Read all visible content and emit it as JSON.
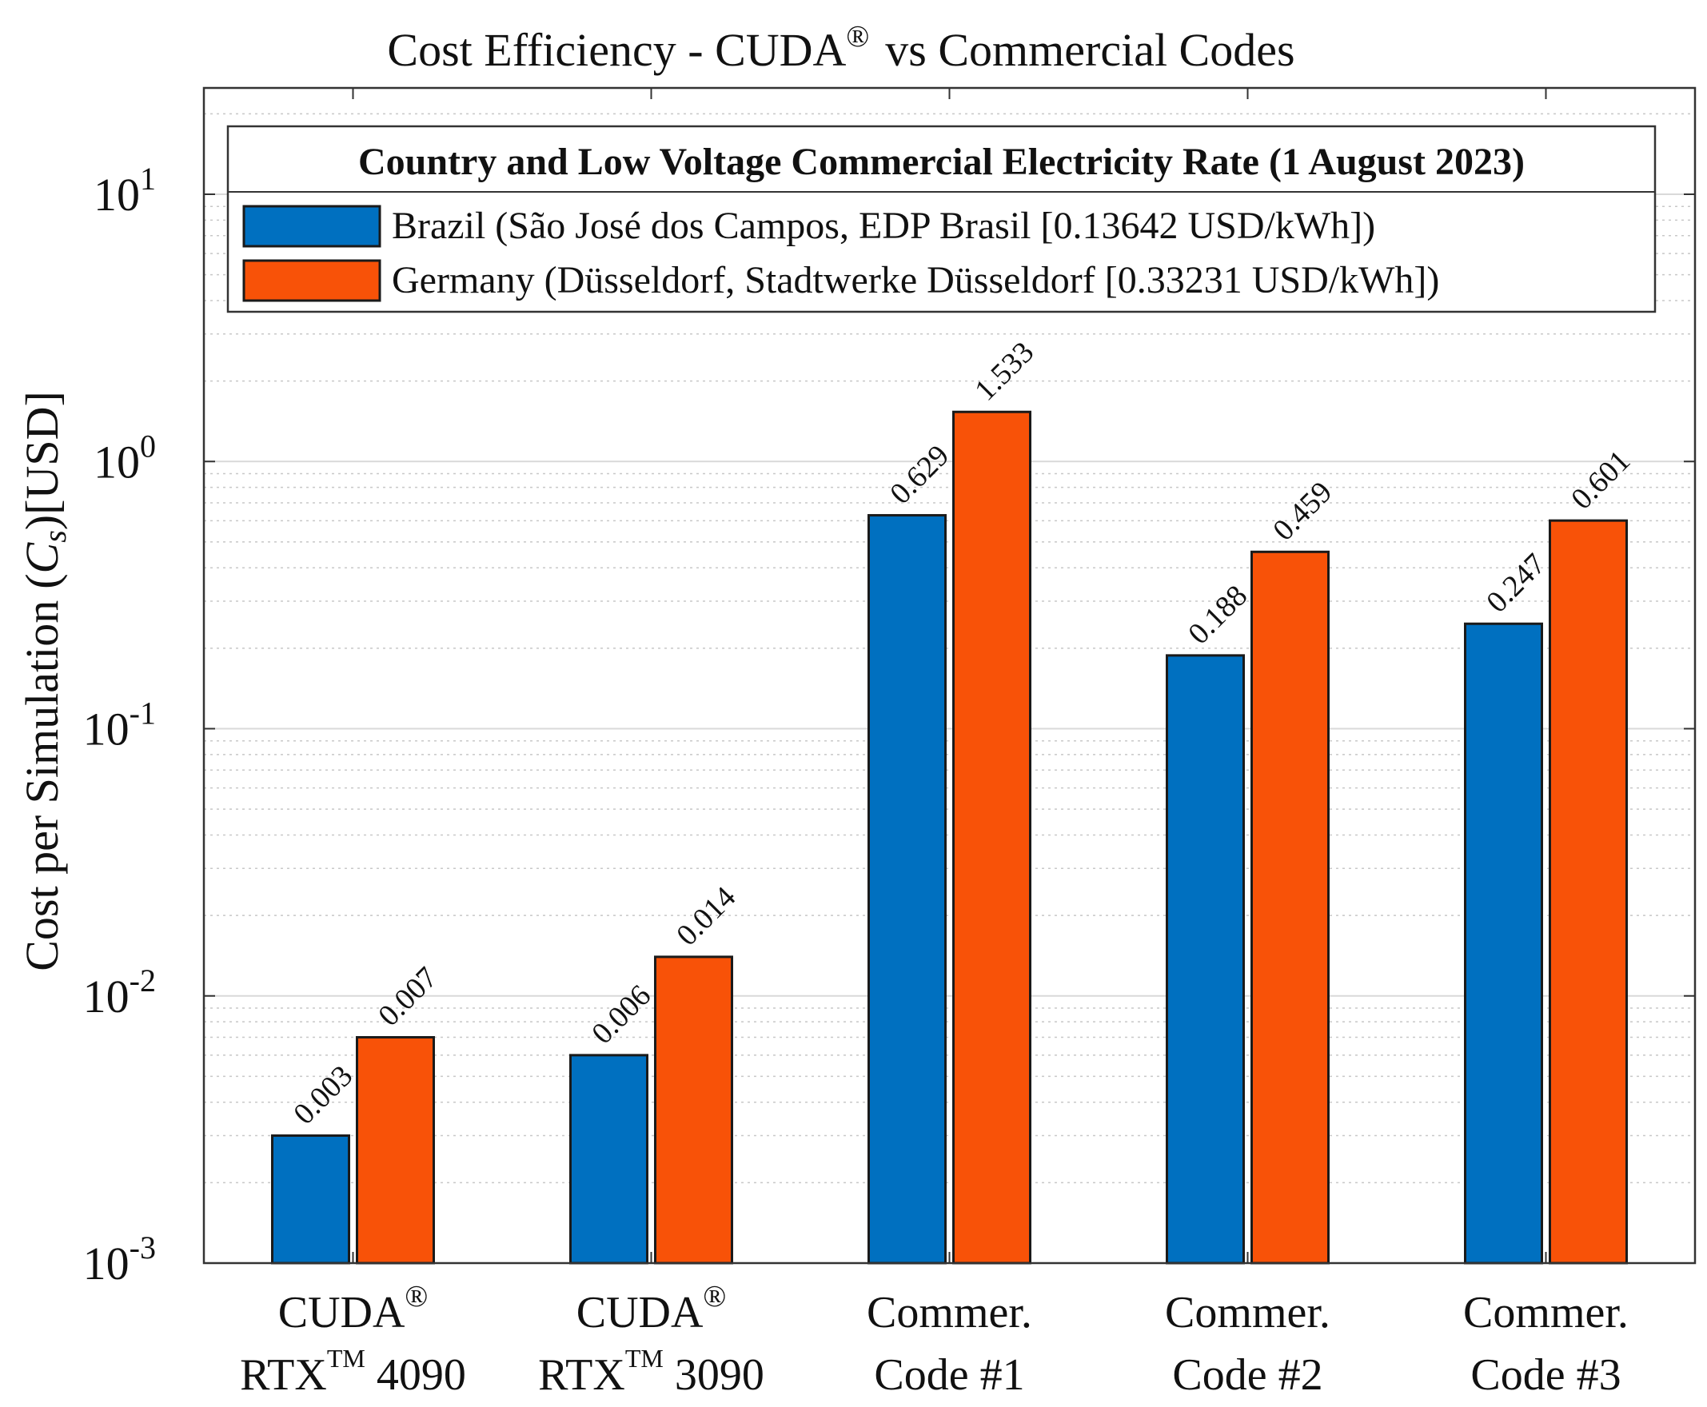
{
  "chart_data": {
    "type": "bar",
    "title": "Cost Efficiency - CUDA",
    "title_superscript": "®",
    "title_suffix": "vs Commercial Codes",
    "ylabel": "Cost per Simulation",
    "ylabel_symbol": "C",
    "ylabel_symbol_sub": "s",
    "ylabel_unit": "[USD]",
    "yscale": "log",
    "ylim": [
      0.001,
      25
    ],
    "yticks": [
      {
        "value": 0.001,
        "base": "10",
        "exp": "-3"
      },
      {
        "value": 0.01,
        "base": "10",
        "exp": "-2"
      },
      {
        "value": 0.1,
        "base": "10",
        "exp": "-1"
      },
      {
        "value": 1,
        "base": "10",
        "exp": "0"
      },
      {
        "value": 10,
        "base": "10",
        "exp": "1"
      }
    ],
    "grid": true,
    "legend_position": "top",
    "legend_title": "Country and Low Voltage Commercial Electricity Rate (1 August 2023)",
    "categories": [
      {
        "line1": "CUDA",
        "line1_sup": "®",
        "line2": "RTX",
        "line2_sup": "TM",
        "line2_suffix": " 4090"
      },
      {
        "line1": "CUDA",
        "line1_sup": "®",
        "line2": "RTX",
        "line2_sup": "TM",
        "line2_suffix": " 3090"
      },
      {
        "line1": "Commer.",
        "line1_sup": "",
        "line2": "Code #1",
        "line2_sup": "",
        "line2_suffix": ""
      },
      {
        "line1": "Commer.",
        "line1_sup": "",
        "line2": "Code #2",
        "line2_sup": "",
        "line2_suffix": ""
      },
      {
        "line1": "Commer.",
        "line1_sup": "",
        "line2": "Code #3",
        "line2_sup": "",
        "line2_suffix": ""
      }
    ],
    "series": [
      {
        "name": "Brazil (São José dos Campos, EDP Brasil [0.13642 USD/kWh])",
        "color": "#0070C0",
        "values": [
          0.003,
          0.006,
          0.629,
          0.188,
          0.247
        ],
        "labels": [
          "0.003",
          "0.006",
          "0.629",
          "0.188",
          "0.247"
        ]
      },
      {
        "name": "Germany (Düsseldorf, Stadtwerke Düsseldorf [0.33231 USD/kWh])",
        "color": "#F85208",
        "values": [
          0.007,
          0.014,
          1.533,
          0.459,
          0.601
        ],
        "labels": [
          "0.007",
          "0.014",
          "1.533",
          "0.459",
          "0.601"
        ]
      }
    ]
  }
}
